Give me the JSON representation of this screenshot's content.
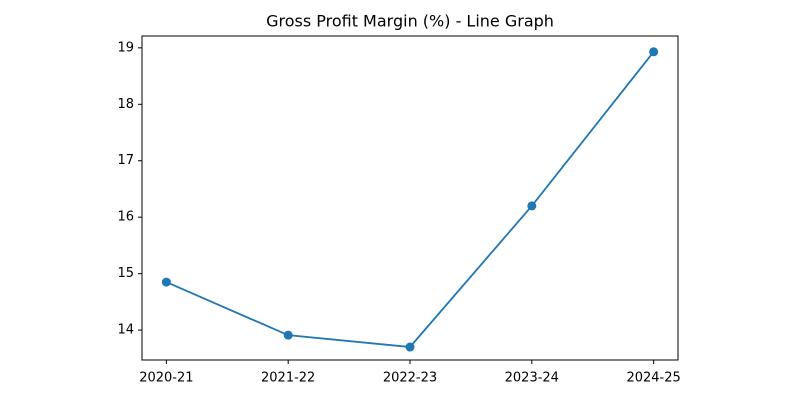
{
  "chart_data": {
    "type": "line",
    "title": "Gross Profit Margin (%) - Line Graph",
    "categories": [
      "2020-21",
      "2021-22",
      "2022-23",
      "2023-24",
      "2024-25"
    ],
    "series": [
      {
        "name": "Gross Profit Margin",
        "color": "#1f77b4",
        "values": [
          14.85,
          13.91,
          13.7,
          16.2,
          18.93
        ]
      }
    ],
    "ylim": [
      13.47,
      19.21
    ],
    "yticks": [
      14,
      15,
      16,
      17,
      18,
      19
    ],
    "grid": false
  }
}
